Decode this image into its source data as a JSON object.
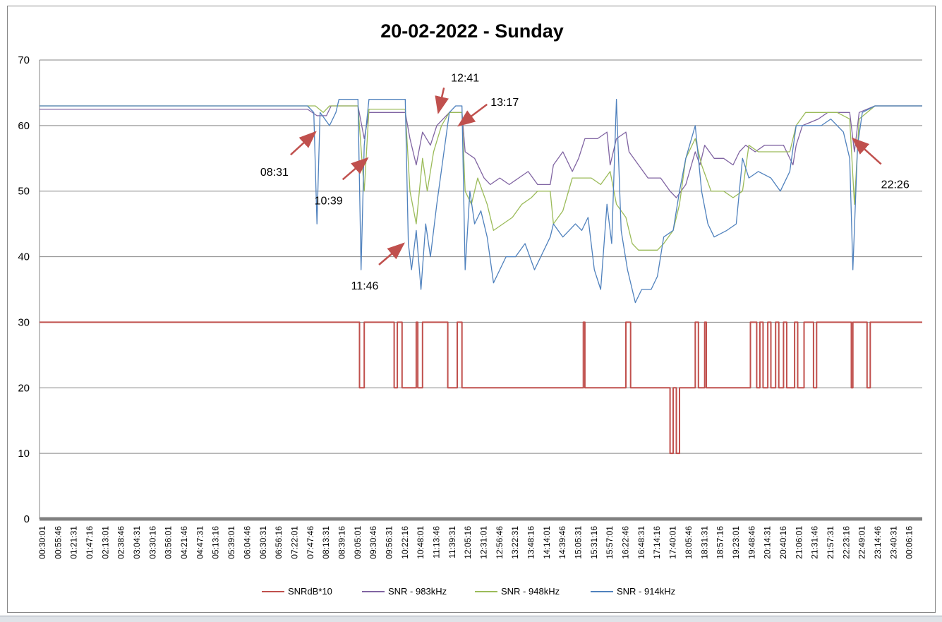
{
  "chart_data": {
    "type": "line",
    "title": "20-02-2022 - Sunday",
    "xlabel": "",
    "ylabel": "",
    "ylim": [
      0,
      70
    ],
    "yticks": [
      0,
      10,
      20,
      30,
      40,
      50,
      60,
      70
    ],
    "grid": true,
    "legend_position": "bottom",
    "x_tick_labels": [
      "00:30:01",
      "00:55:46",
      "01:21:31",
      "01:47:16",
      "02:13:01",
      "02:38:46",
      "03:04:31",
      "03:30:16",
      "03:56:01",
      "04:21:46",
      "04:47:31",
      "05:13:16",
      "05:39:01",
      "06:04:46",
      "06:30:31",
      "06:56:16",
      "07:22:01",
      "07:47:46",
      "08:13:31",
      "08:39:16",
      "09:05:01",
      "09:30:46",
      "09:56:31",
      "10:22:16",
      "10:48:01",
      "11:13:46",
      "11:39:31",
      "12:05:16",
      "12:31:01",
      "12:56:46",
      "13:22:31",
      "13:48:16",
      "14:14:01",
      "14:39:46",
      "15:05:31",
      "15:31:16",
      "15:57:01",
      "16:22:46",
      "16:48:31",
      "17:14:16",
      "17:40:01",
      "18:05:46",
      "18:31:31",
      "18:57:16",
      "19:23:01",
      "19:48:46",
      "20:14:31",
      "20:40:16",
      "21:06:01",
      "21:31:46",
      "21:57:31",
      "22:23:16",
      "22:49:01",
      "23:14:46",
      "23:40:31",
      "00:06:16"
    ],
    "series": [
      {
        "name": "SNRdB*10",
        "color": "#c0504d",
        "style": "step",
        "points": [
          [
            0,
            30
          ],
          [
            20.3,
            30
          ],
          [
            20.3,
            20
          ],
          [
            20.6,
            20
          ],
          [
            20.6,
            30
          ],
          [
            22.5,
            30
          ],
          [
            22.5,
            20
          ],
          [
            22.7,
            20
          ],
          [
            22.7,
            30
          ],
          [
            23.0,
            30
          ],
          [
            23.0,
            20
          ],
          [
            23.9,
            20
          ],
          [
            23.9,
            30
          ],
          [
            24.0,
            30
          ],
          [
            24.0,
            20
          ],
          [
            24.3,
            20
          ],
          [
            24.3,
            30
          ],
          [
            25.9,
            30
          ],
          [
            25.9,
            20
          ],
          [
            26.5,
            20
          ],
          [
            26.5,
            30
          ],
          [
            26.8,
            30
          ],
          [
            26.8,
            20
          ],
          [
            34.5,
            20
          ],
          [
            34.5,
            30
          ],
          [
            34.6,
            30
          ],
          [
            34.6,
            20
          ],
          [
            37.2,
            20
          ],
          [
            37.2,
            30
          ],
          [
            37.5,
            30
          ],
          [
            37.5,
            20
          ],
          [
            40.0,
            20
          ],
          [
            40.0,
            10
          ],
          [
            40.2,
            10
          ],
          [
            40.2,
            20
          ],
          [
            40.4,
            20
          ],
          [
            40.4,
            10
          ],
          [
            40.6,
            10
          ],
          [
            40.6,
            20
          ],
          [
            41.6,
            20
          ],
          [
            41.6,
            30
          ],
          [
            41.8,
            30
          ],
          [
            41.8,
            20
          ],
          [
            42.2,
            20
          ],
          [
            42.2,
            30
          ],
          [
            42.3,
            30
          ],
          [
            42.3,
            20
          ],
          [
            45.1,
            20
          ],
          [
            45.1,
            30
          ],
          [
            45.5,
            30
          ],
          [
            45.5,
            20
          ],
          [
            45.7,
            20
          ],
          [
            45.7,
            30
          ],
          [
            45.9,
            30
          ],
          [
            45.9,
            20
          ],
          [
            46.2,
            20
          ],
          [
            46.2,
            30
          ],
          [
            46.4,
            30
          ],
          [
            46.4,
            20
          ],
          [
            46.7,
            20
          ],
          [
            46.7,
            30
          ],
          [
            46.9,
            30
          ],
          [
            46.9,
            20
          ],
          [
            47.2,
            20
          ],
          [
            47.2,
            30
          ],
          [
            47.4,
            30
          ],
          [
            47.4,
            20
          ],
          [
            47.9,
            20
          ],
          [
            47.9,
            30
          ],
          [
            48.1,
            30
          ],
          [
            48.1,
            20
          ],
          [
            48.5,
            20
          ],
          [
            48.5,
            30
          ],
          [
            49.1,
            30
          ],
          [
            49.1,
            20
          ],
          [
            49.3,
            20
          ],
          [
            49.3,
            30
          ],
          [
            51.5,
            30
          ],
          [
            51.5,
            20
          ],
          [
            51.6,
            20
          ],
          [
            51.6,
            30
          ],
          [
            52.5,
            30
          ],
          [
            52.5,
            20
          ],
          [
            52.7,
            20
          ],
          [
            52.7,
            30
          ],
          [
            56,
            30
          ]
        ]
      },
      {
        "name": "SNR - 983kHz",
        "color": "#8064a2",
        "style": "line",
        "points": [
          [
            0,
            62.5
          ],
          [
            17.0,
            62.5
          ],
          [
            17.6,
            61.5
          ],
          [
            18.2,
            61.5
          ],
          [
            18.5,
            63
          ],
          [
            20.2,
            63
          ],
          [
            20.6,
            58
          ],
          [
            20.9,
            62
          ],
          [
            23.2,
            62
          ],
          [
            23.5,
            58
          ],
          [
            23.9,
            54
          ],
          [
            24.3,
            59
          ],
          [
            24.8,
            57
          ],
          [
            25.2,
            60
          ],
          [
            25.6,
            61
          ],
          [
            26.0,
            62
          ],
          [
            26.8,
            62
          ],
          [
            27.0,
            56
          ],
          [
            27.6,
            55
          ],
          [
            28.2,
            52
          ],
          [
            28.6,
            51
          ],
          [
            29.2,
            52
          ],
          [
            29.8,
            51
          ],
          [
            30.4,
            52
          ],
          [
            31.0,
            53
          ],
          [
            31.6,
            51
          ],
          [
            32.4,
            51
          ],
          [
            32.6,
            54
          ],
          [
            33.2,
            56
          ],
          [
            33.8,
            53
          ],
          [
            34.2,
            55
          ],
          [
            34.6,
            58
          ],
          [
            35.4,
            58
          ],
          [
            36.0,
            59
          ],
          [
            36.2,
            54
          ],
          [
            36.6,
            58
          ],
          [
            37.2,
            59
          ],
          [
            37.4,
            56
          ],
          [
            38.0,
            54
          ],
          [
            38.6,
            52
          ],
          [
            39.4,
            52
          ],
          [
            40.0,
            50
          ],
          [
            40.4,
            49
          ],
          [
            41.0,
            51
          ],
          [
            41.6,
            56
          ],
          [
            41.9,
            54
          ],
          [
            42.2,
            57
          ],
          [
            42.8,
            55
          ],
          [
            43.4,
            55
          ],
          [
            44.0,
            54
          ],
          [
            44.4,
            56
          ],
          [
            44.8,
            57
          ],
          [
            45.4,
            56
          ],
          [
            46.0,
            57
          ],
          [
            46.6,
            57
          ],
          [
            47.2,
            57
          ],
          [
            47.8,
            54
          ],
          [
            48.0,
            57
          ],
          [
            48.4,
            60
          ],
          [
            49.4,
            61
          ],
          [
            50.0,
            62
          ],
          [
            51.4,
            62
          ],
          [
            51.7,
            56
          ],
          [
            52.0,
            62
          ],
          [
            53.0,
            63
          ],
          [
            56,
            63
          ]
        ]
      },
      {
        "name": "SNR - 948kHz",
        "color": "#9bbb59",
        "style": "line",
        "points": [
          [
            0,
            63
          ],
          [
            17.5,
            63
          ],
          [
            18.0,
            62
          ],
          [
            18.4,
            63
          ],
          [
            20.2,
            63
          ],
          [
            20.6,
            50
          ],
          [
            20.9,
            62.5
          ],
          [
            23.2,
            62.5
          ],
          [
            23.5,
            50
          ],
          [
            23.9,
            45
          ],
          [
            24.3,
            55
          ],
          [
            24.6,
            50
          ],
          [
            25.0,
            56
          ],
          [
            25.5,
            60
          ],
          [
            26.0,
            62
          ],
          [
            26.8,
            62
          ],
          [
            27.0,
            50
          ],
          [
            27.4,
            48
          ],
          [
            27.8,
            52
          ],
          [
            28.4,
            48
          ],
          [
            28.8,
            44
          ],
          [
            29.4,
            45
          ],
          [
            30.0,
            46
          ],
          [
            30.6,
            48
          ],
          [
            31.2,
            49
          ],
          [
            31.6,
            50
          ],
          [
            32.4,
            50
          ],
          [
            32.6,
            45
          ],
          [
            33.2,
            47
          ],
          [
            33.8,
            52
          ],
          [
            34.6,
            52
          ],
          [
            35.0,
            52
          ],
          [
            35.6,
            51
          ],
          [
            36.2,
            53
          ],
          [
            36.6,
            48
          ],
          [
            37.2,
            46
          ],
          [
            37.6,
            42
          ],
          [
            38.0,
            41
          ],
          [
            38.6,
            41
          ],
          [
            39.2,
            41
          ],
          [
            39.6,
            42
          ],
          [
            40.2,
            44
          ],
          [
            40.6,
            48
          ],
          [
            41.0,
            55
          ],
          [
            41.6,
            58
          ],
          [
            42.0,
            54
          ],
          [
            42.6,
            50
          ],
          [
            43.4,
            50
          ],
          [
            44.0,
            49
          ],
          [
            44.6,
            50
          ],
          [
            45.0,
            57
          ],
          [
            45.6,
            56
          ],
          [
            46.2,
            56
          ],
          [
            47.0,
            56
          ],
          [
            47.6,
            56
          ],
          [
            48.0,
            60
          ],
          [
            48.6,
            62
          ],
          [
            49.8,
            62
          ],
          [
            50.6,
            62
          ],
          [
            51.4,
            61
          ],
          [
            51.7,
            48
          ],
          [
            52.0,
            61
          ],
          [
            53.0,
            63
          ],
          [
            56,
            63
          ]
        ]
      },
      {
        "name": "SNR - 914kHz",
        "color": "#4f81bd",
        "style": "line",
        "points": [
          [
            0,
            63
          ],
          [
            7.0,
            63
          ],
          [
            12.0,
            63
          ],
          [
            17.0,
            63
          ],
          [
            17.4,
            62
          ],
          [
            17.6,
            45
          ],
          [
            17.8,
            62
          ],
          [
            18.4,
            60
          ],
          [
            18.8,
            62
          ],
          [
            19.0,
            64
          ],
          [
            20.2,
            64
          ],
          [
            20.4,
            38
          ],
          [
            20.6,
            57
          ],
          [
            20.9,
            64
          ],
          [
            23.2,
            64
          ],
          [
            23.4,
            42
          ],
          [
            23.6,
            38
          ],
          [
            23.9,
            44
          ],
          [
            24.2,
            35
          ],
          [
            24.5,
            45
          ],
          [
            24.8,
            40
          ],
          [
            25.2,
            48
          ],
          [
            25.6,
            55
          ],
          [
            26.0,
            62
          ],
          [
            26.4,
            63
          ],
          [
            26.8,
            63
          ],
          [
            27.0,
            38
          ],
          [
            27.3,
            50
          ],
          [
            27.6,
            45
          ],
          [
            28.0,
            47
          ],
          [
            28.4,
            43
          ],
          [
            28.8,
            36
          ],
          [
            29.2,
            38
          ],
          [
            29.6,
            40
          ],
          [
            30.2,
            40
          ],
          [
            30.8,
            42
          ],
          [
            31.4,
            38
          ],
          [
            31.8,
            40
          ],
          [
            32.4,
            43
          ],
          [
            32.6,
            45
          ],
          [
            33.2,
            43
          ],
          [
            33.6,
            44
          ],
          [
            34.0,
            45
          ],
          [
            34.4,
            44
          ],
          [
            34.8,
            46
          ],
          [
            35.2,
            38
          ],
          [
            35.6,
            35
          ],
          [
            36.0,
            48
          ],
          [
            36.3,
            42
          ],
          [
            36.6,
            64
          ],
          [
            36.9,
            44
          ],
          [
            37.3,
            38
          ],
          [
            37.8,
            33
          ],
          [
            38.2,
            35
          ],
          [
            38.8,
            35
          ],
          [
            39.2,
            37
          ],
          [
            39.6,
            43
          ],
          [
            40.2,
            44
          ],
          [
            40.6,
            50
          ],
          [
            41.0,
            55
          ],
          [
            41.6,
            60
          ],
          [
            42.0,
            50
          ],
          [
            42.4,
            45
          ],
          [
            42.8,
            43
          ],
          [
            43.6,
            44
          ],
          [
            44.2,
            45
          ],
          [
            44.6,
            55
          ],
          [
            45.0,
            52
          ],
          [
            45.6,
            53
          ],
          [
            46.4,
            52
          ],
          [
            47.0,
            50
          ],
          [
            47.6,
            53
          ],
          [
            48.0,
            60
          ],
          [
            48.8,
            60
          ],
          [
            49.6,
            60
          ],
          [
            50.2,
            61
          ],
          [
            51.0,
            59
          ],
          [
            51.4,
            55
          ],
          [
            51.6,
            38
          ],
          [
            51.9,
            57
          ],
          [
            52.2,
            62
          ],
          [
            53.0,
            63
          ],
          [
            56,
            63
          ]
        ]
      }
    ],
    "annotations": [
      {
        "text": "08:31",
        "x": 17.5,
        "y": 59
      },
      {
        "text": "10:39",
        "x": 20.8,
        "y": 55
      },
      {
        "text": "11:46",
        "x": 23.1,
        "y": 42
      },
      {
        "text": "12:41",
        "x": 25.3,
        "y": 62
      },
      {
        "text": "13:17",
        "x": 26.6,
        "y": 60
      },
      {
        "text": "22:26",
        "x": 51.6,
        "y": 58
      }
    ]
  }
}
